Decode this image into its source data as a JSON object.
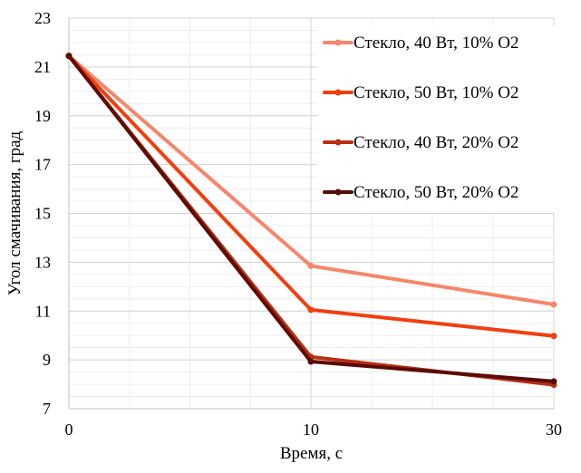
{
  "chart_data": {
    "type": "line",
    "title": "",
    "xlabel": "Время, с",
    "ylabel": "Угол смачивания, град",
    "x": [
      0,
      10,
      30
    ],
    "x_tick_labels": [
      "0",
      "10",
      "30"
    ],
    "ylim": [
      7,
      23
    ],
    "y_ticks": [
      7,
      9,
      11,
      13,
      15,
      17,
      19,
      21,
      23
    ],
    "grid": true,
    "legend_position": "top-right",
    "series": [
      {
        "name": "Стекло, 40 Вт, 10% О2",
        "color": "#F4876A",
        "values": [
          21.45,
          12.85,
          11.27
        ]
      },
      {
        "name": "Стекло, 50 Вт, 10% О2",
        "color": "#F23E0F",
        "values": [
          21.45,
          11.05,
          9.98
        ]
      },
      {
        "name": "Стекло, 40 Вт, 20% О2",
        "color": "#B82F12",
        "values": [
          21.45,
          9.12,
          7.98
        ]
      },
      {
        "name": "Стекло, 50 Вт, 20% О2",
        "color": "#5A0C06",
        "values": [
          21.45,
          8.93,
          8.12
        ]
      }
    ]
  }
}
